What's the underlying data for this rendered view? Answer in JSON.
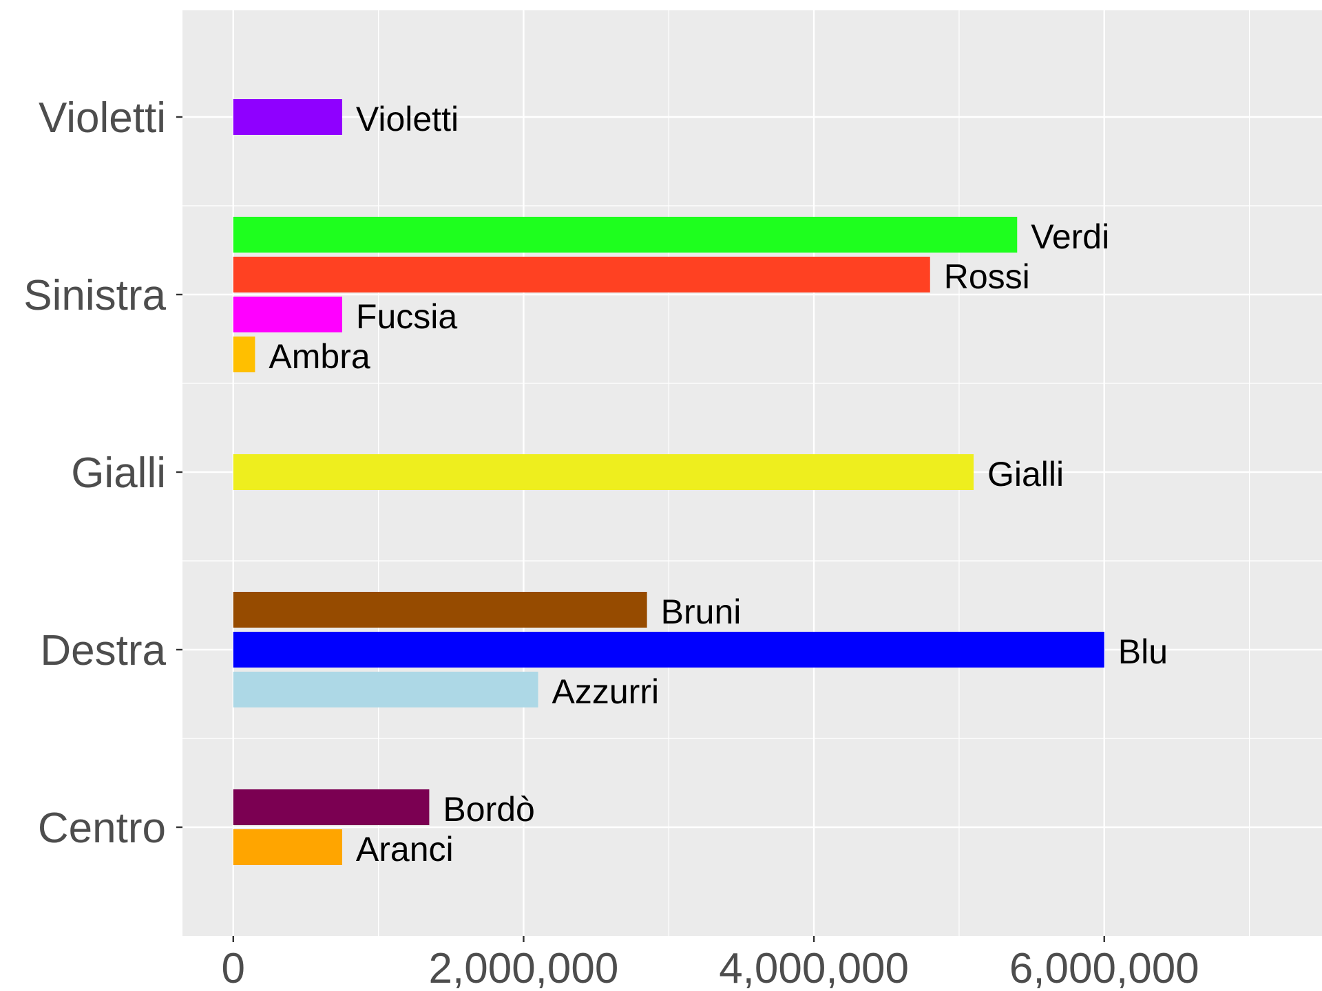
{
  "chart_data": {
    "type": "bar",
    "orientation": "horizontal",
    "xlim": [
      -350000,
      7500000
    ],
    "x_ticks": [
      0,
      2000000,
      4000000,
      6000000
    ],
    "x_tick_labels": [
      "0",
      "2,000,000",
      "4,000,000",
      "6,000,000"
    ],
    "categories": [
      "Violetti",
      "Sinistra",
      "Gialli",
      "Destra",
      "Centro"
    ],
    "grid": true,
    "background": "#ebebeb",
    "groups": [
      {
        "category": "Violetti",
        "bars": [
          {
            "label": "Violetti",
            "value": 750000,
            "color": "#8f00ff"
          }
        ]
      },
      {
        "category": "Sinistra",
        "bars": [
          {
            "label": "Verdi",
            "value": 5400000,
            "color": "#1eff1e"
          },
          {
            "label": "Rossi",
            "value": 4800000,
            "color": "#ff4122"
          },
          {
            "label": "Fucsia",
            "value": 750000,
            "color": "#ff00ff"
          },
          {
            "label": "Ambra",
            "value": 150000,
            "color": "#ffbf00"
          }
        ]
      },
      {
        "category": "Gialli",
        "bars": [
          {
            "label": "Gialli",
            "value": 5100000,
            "color": "#eeee1e"
          }
        ]
      },
      {
        "category": "Destra",
        "bars": [
          {
            "label": "Bruni",
            "value": 2850000,
            "color": "#964b00"
          },
          {
            "label": "Blu",
            "value": 6000000,
            "color": "#0000ff"
          },
          {
            "label": "Azzurri",
            "value": 2100000,
            "color": "#add8e6"
          }
        ]
      },
      {
        "category": "Centro",
        "bars": [
          {
            "label": "Bordò",
            "value": 1350000,
            "color": "#7b0052"
          },
          {
            "label": "Aranci",
            "value": 750000,
            "color": "#ffa500"
          }
        ]
      }
    ]
  }
}
